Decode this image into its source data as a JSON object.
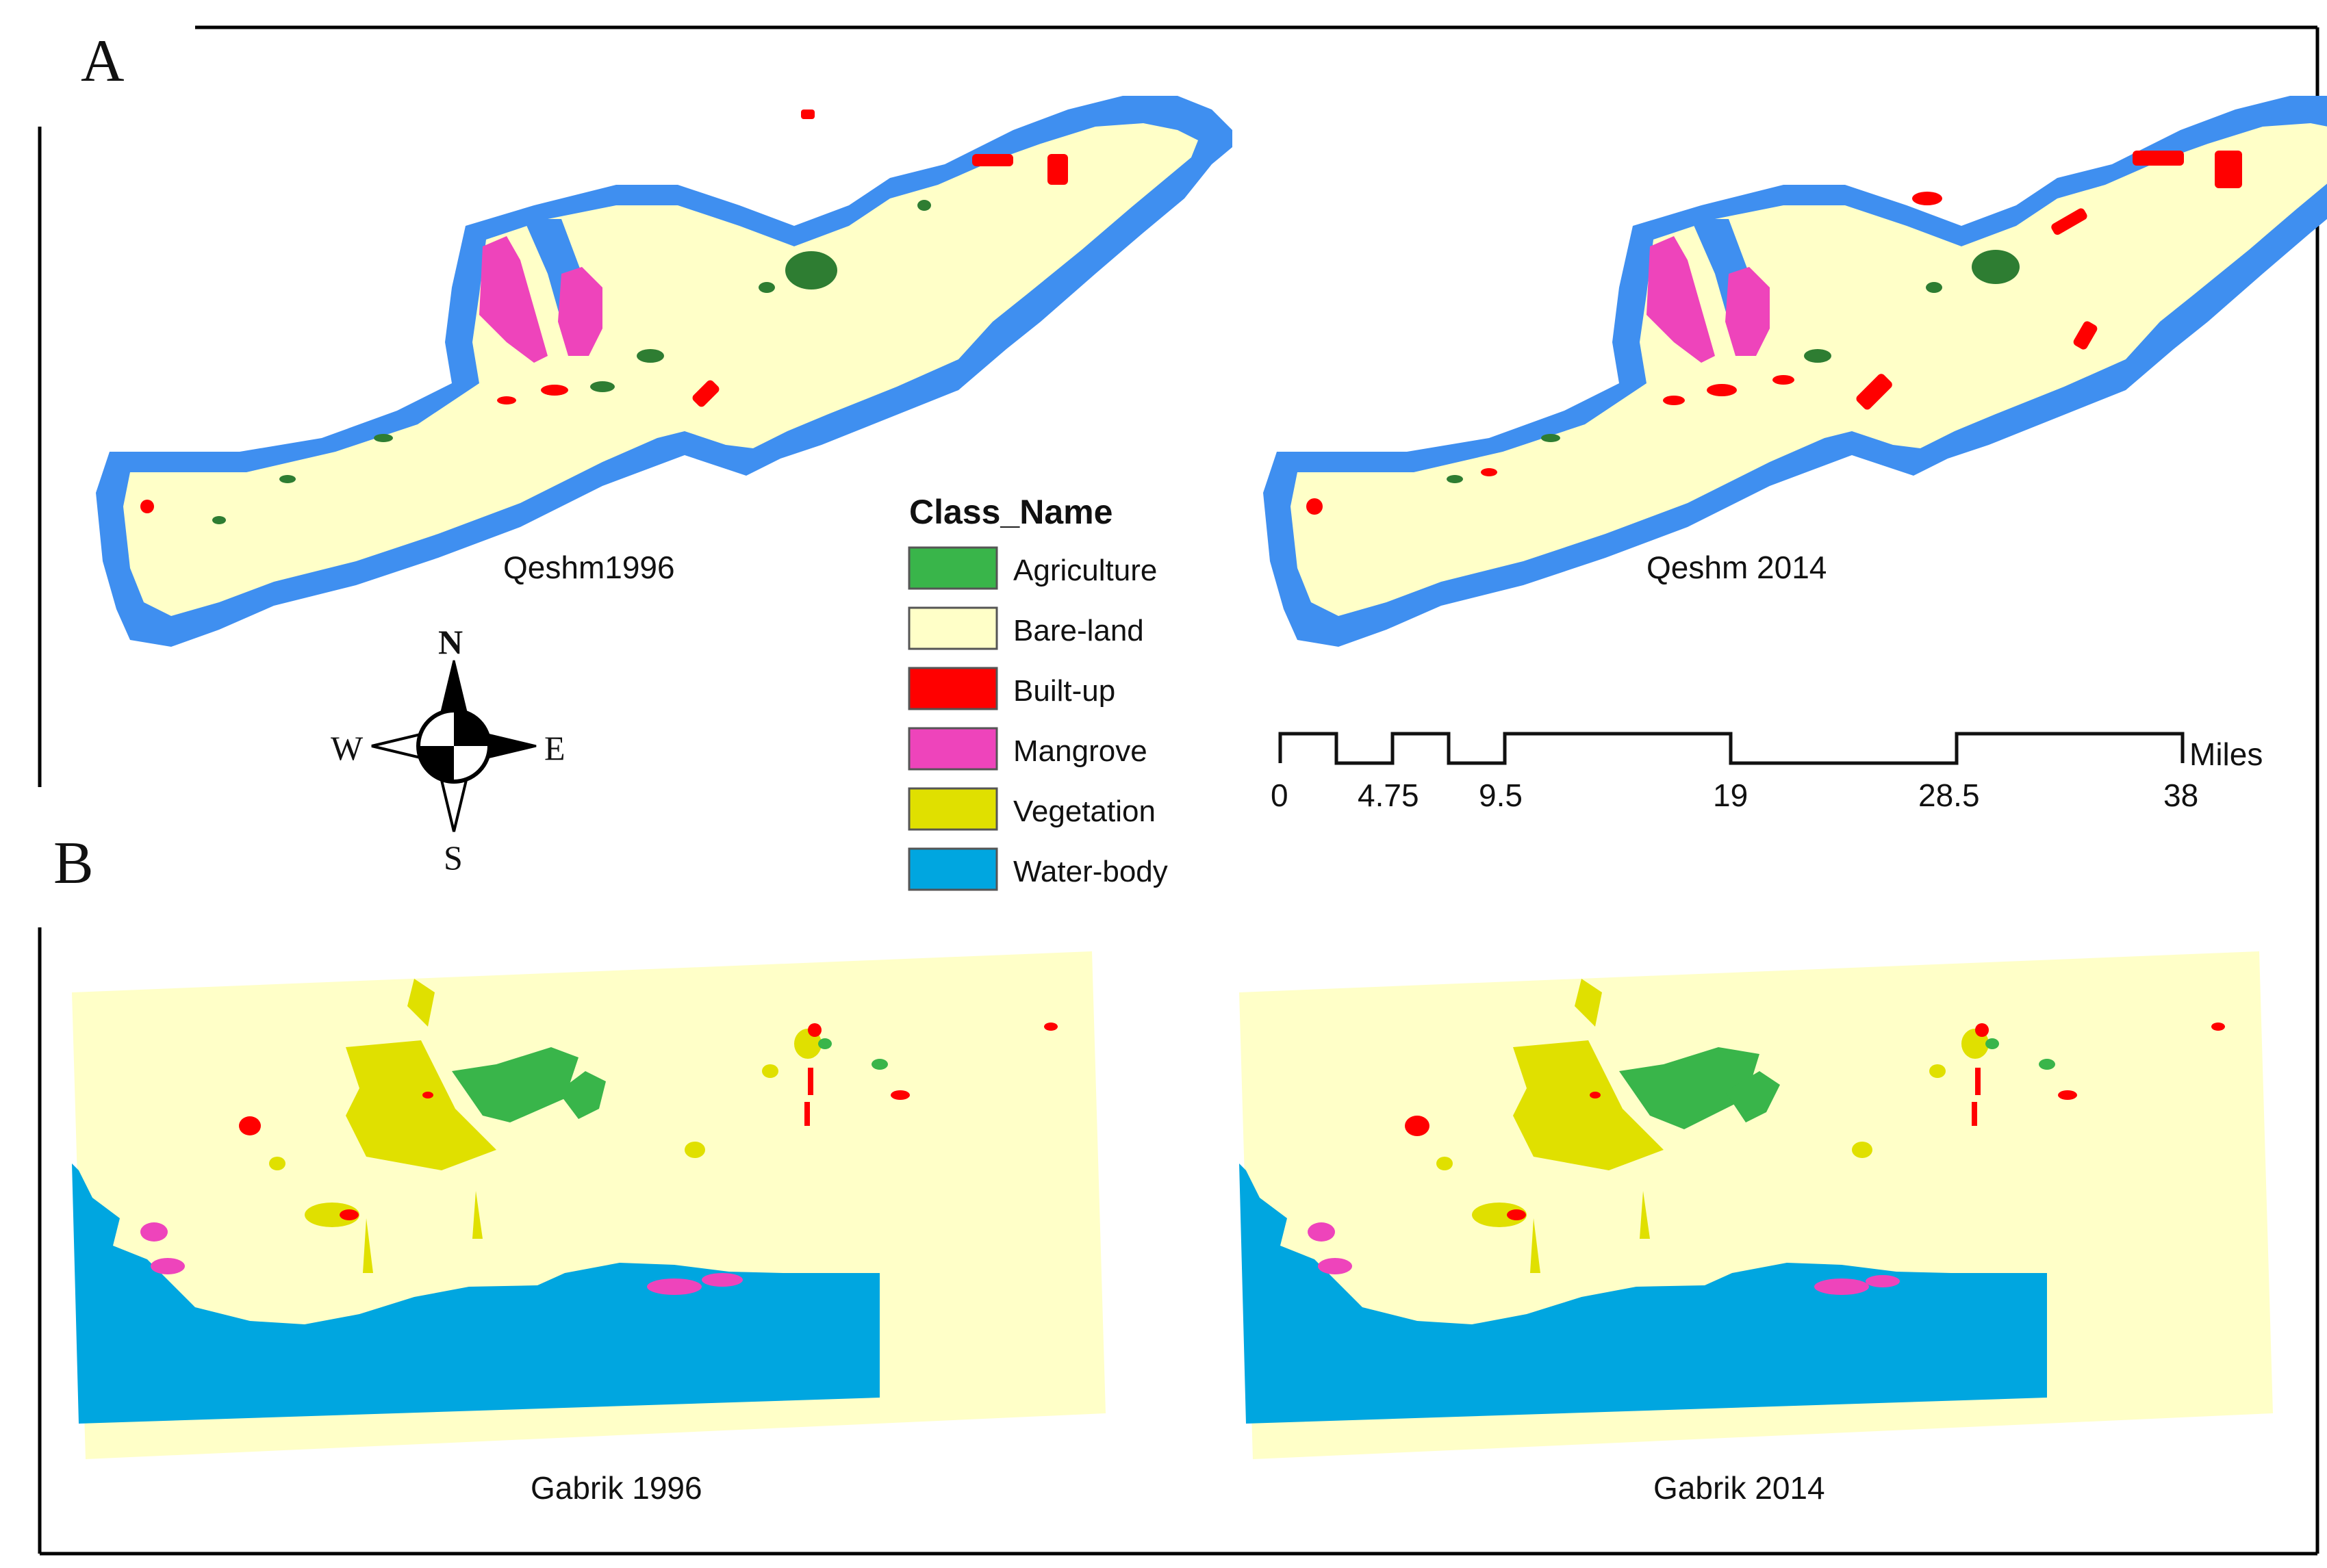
{
  "panels": {
    "a_label": "A",
    "b_label": "B"
  },
  "maps": {
    "qeshm_1996": "Qeshm1996",
    "qeshm_2014": "Qeshm 2014",
    "gabrik_1996": "Gabrik 1996",
    "gabrik_2014": "Gabrik 2014"
  },
  "legend": {
    "title": "Class_Name",
    "items": [
      {
        "label": "Agriculture",
        "color": "#39b54a"
      },
      {
        "label": "Bare-land",
        "color": "#ffffc8"
      },
      {
        "label": "Built-up",
        "color": "#ff0000"
      },
      {
        "label": "Mangrove",
        "color": "#ee44bb"
      },
      {
        "label": "Vegetation",
        "color": "#e0e000"
      },
      {
        "label": "Water-body",
        "color": "#00a6e0"
      }
    ]
  },
  "compass": {
    "n": "N",
    "s": "S",
    "e": "E",
    "w": "W"
  },
  "scale_bar": {
    "unit": "Miles",
    "ticks": [
      "0",
      "4.75",
      "9.5",
      "19",
      "28.5",
      "38"
    ]
  },
  "colors": {
    "qeshm_water": "#3f8ff0",
    "bare_land": "#ffffc8",
    "agriculture": "#39b54a",
    "dark_agriculture": "#2e7d32",
    "built_up": "#ff0000",
    "mangrove": "#ee44bb",
    "vegetation": "#e0e000",
    "sea": "#00a6e0"
  }
}
